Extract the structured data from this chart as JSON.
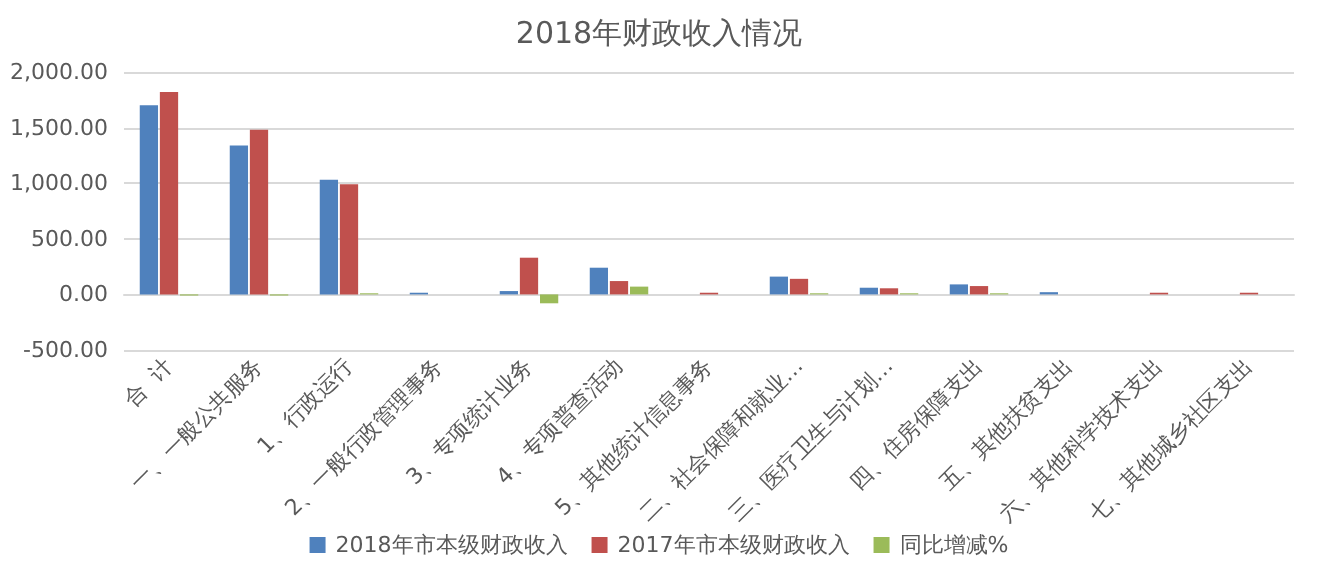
{
  "chart_data": {
    "type": "bar",
    "title": "2018年财政收入情况",
    "categories": [
      "合  计",
      "一、一般公共服务",
      "1、行政运行",
      "2、一般行政管理事务",
      "3、专项统计业务",
      "4、专项普查活动",
      "5、其他统计信息事务",
      "二、社会保障和就业…",
      "三、医疗卫生与计划…",
      "四、住房保障支出",
      "五、其他扶贫支出",
      "六、其他科学技术支出",
      "七、其他城乡社区支出"
    ],
    "series": [
      {
        "name": "2018年市本级财政收入",
        "color": "#4f81bd",
        "values": [
          1700,
          1340,
          1030,
          15,
          30,
          240,
          0,
          160,
          60,
          90,
          20,
          0,
          0
        ]
      },
      {
        "name": "2017年市本级财政收入",
        "color": "#c0504d",
        "values": [
          1820,
          1480,
          990,
          0,
          330,
          120,
          15,
          140,
          55,
          75,
          0,
          15,
          15
        ]
      },
      {
        "name": "同比增减%",
        "color": "#9bbb59",
        "values": [
          -10,
          -10,
          10,
          0,
          -80,
          70,
          0,
          10,
          10,
          10,
          0,
          0,
          0
        ]
      }
    ],
    "ylim": [
      -500,
      2000
    ],
    "yticks": [
      {
        "value": -500,
        "label": "-500.00"
      },
      {
        "value": 0,
        "label": "0.00"
      },
      {
        "value": 500,
        "label": "500.00"
      },
      {
        "value": 1000,
        "label": "1,000.00"
      },
      {
        "value": 1500,
        "label": "1,500.00"
      },
      {
        "value": 2000,
        "label": "2,000.00"
      }
    ],
    "grid": "y",
    "legend": "bottom"
  }
}
